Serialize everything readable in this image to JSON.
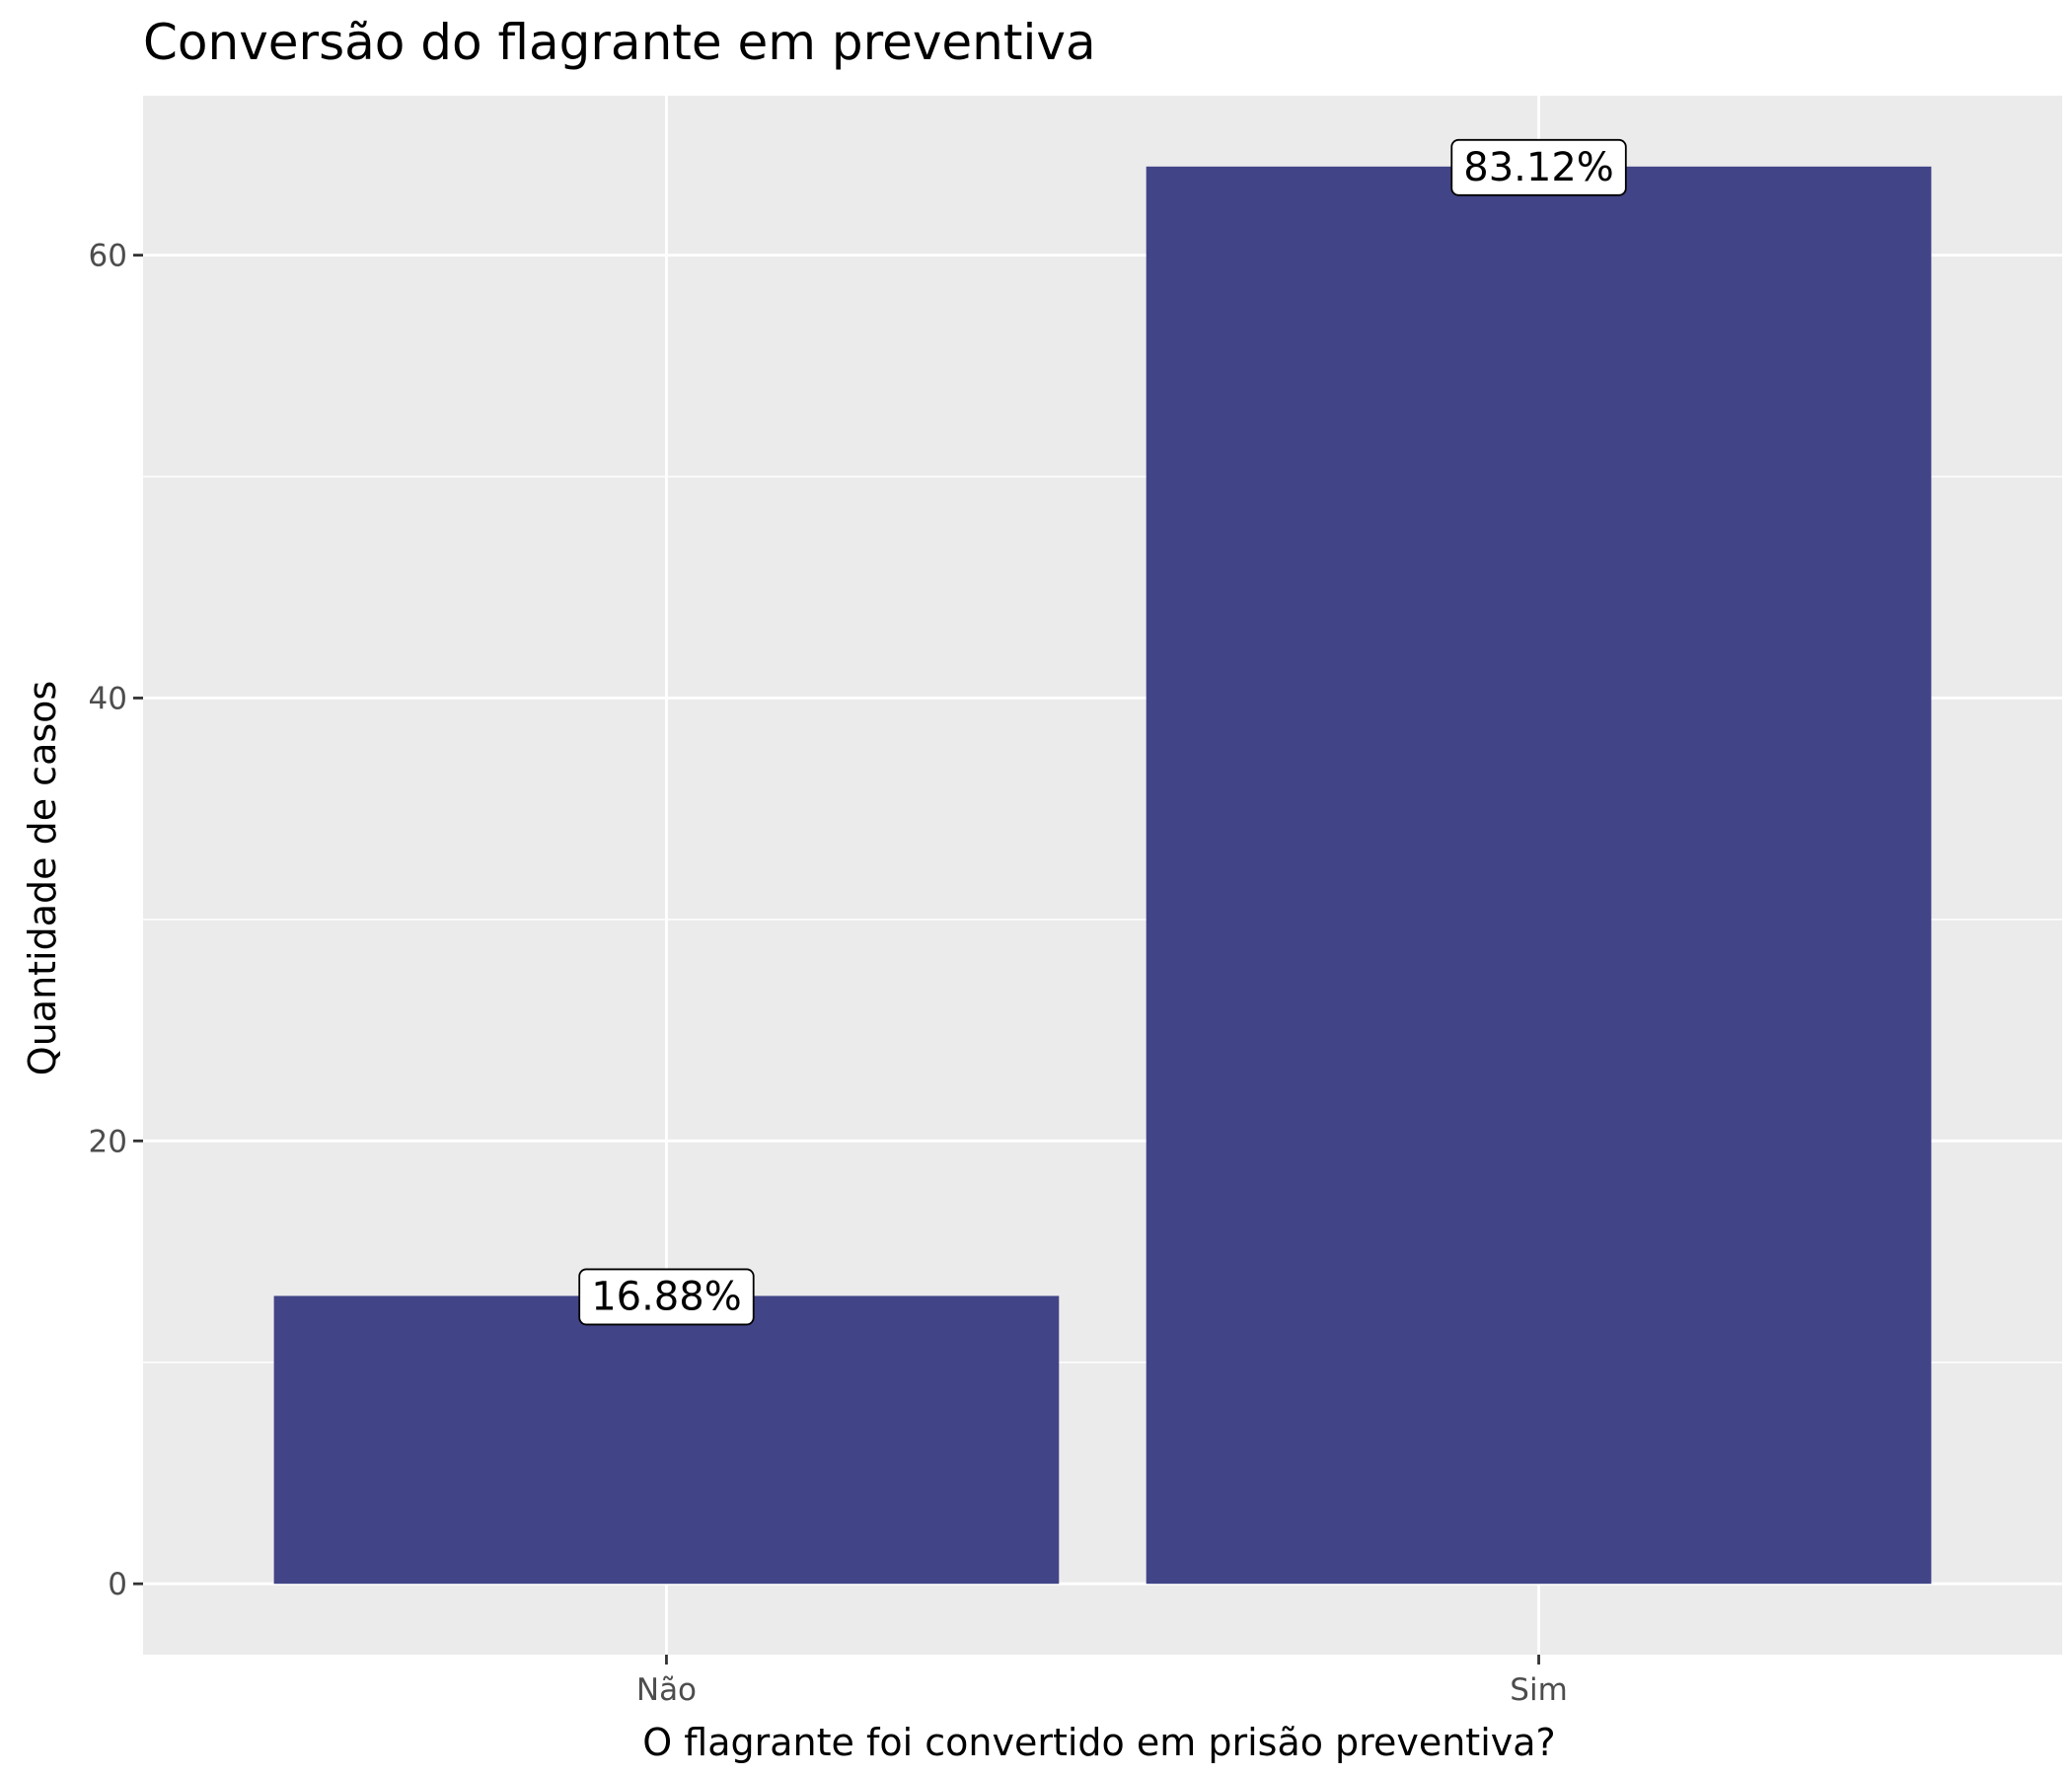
{
  "chart_data": {
    "type": "bar",
    "title": "Conversão do flagrante em preventiva",
    "xlabel": "O flagrante foi convertido em prisão preventiva?",
    "ylabel": "Quantidade de casos",
    "categories": [
      "Não",
      "Sim"
    ],
    "values": [
      13,
      64
    ],
    "data_labels": [
      "16.88%",
      "83.12%"
    ],
    "y_ticks": [
      0,
      20,
      40,
      60
    ],
    "ylim": [
      -3.2,
      67.2
    ],
    "grid": true,
    "legend": "none",
    "colors": {
      "bar": "#414487",
      "panel": "#ebebeb",
      "grid": "#ffffff"
    }
  }
}
